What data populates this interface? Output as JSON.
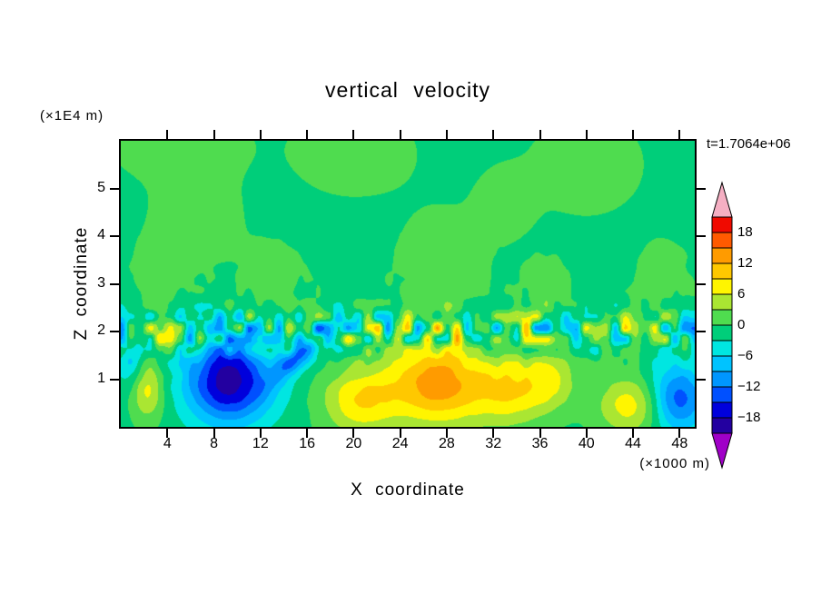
{
  "header": {
    "title": "vertical velocity",
    "timestamp": "t=1.7064e+06"
  },
  "axes": {
    "x_label": "X coordinate",
    "x_unit": "(×1000 m)",
    "x_ticks": [
      4,
      8,
      12,
      16,
      20,
      24,
      28,
      32,
      36,
      40,
      44,
      48
    ],
    "xlim": [
      0,
      49.3
    ],
    "z_label": "Z coordinate",
    "z_unit": "(×1E4 m)",
    "z_ticks": [
      1,
      2,
      3,
      4,
      5
    ],
    "zlim": [
      0,
      6
    ]
  },
  "colorbar": {
    "labels": [
      "18",
      "12",
      "6",
      "0",
      "−6",
      "−12",
      "−18"
    ]
  },
  "chart_data": {
    "type": "heatmap",
    "subtype": "filled-contour",
    "title": "vertical velocity",
    "xlabel": "X coordinate (×1000 m)",
    "ylabel": "Z coordinate (×1E4 m)",
    "time_label": "t=1.7064e+06",
    "xlim": [
      0,
      49.3
    ],
    "ylim": [
      0,
      6
    ],
    "grid": false,
    "legend_position": "right-colorbar",
    "levels": [
      -21,
      -18,
      -15,
      -12,
      -9,
      -6,
      -3,
      0,
      3,
      6,
      9,
      12,
      15,
      18,
      21
    ],
    "colors": [
      "#A000C8",
      "#2300A0",
      "#0000DC",
      "#0050FF",
      "#0096FF",
      "#00C3FF",
      "#00E6E1",
      "#00CE7A",
      "#4FDC4F",
      "#AAE632",
      "#FFF500",
      "#FFC800",
      "#FF9B00",
      "#FF5A00",
      "#F00A00",
      "#F5AFC3"
    ],
    "colorbar_tick_values": [
      18,
      12,
      6,
      0,
      -6,
      -12,
      -18
    ],
    "field_model": {
      "background": -0.8,
      "blobs": [
        {
          "x": 9.3,
          "z": 0.95,
          "sx": 2.6,
          "sz": 0.62,
          "amp": -19
        },
        {
          "x": 15.3,
          "z": 1.5,
          "sx": 1.6,
          "sz": 0.22,
          "amp": -11,
          "rot": 0.19
        },
        {
          "x": 47.9,
          "z": 0.6,
          "sx": 1.7,
          "sz": 0.5,
          "amp": -13
        },
        {
          "x": 0.9,
          "z": 1.55,
          "sx": 0.8,
          "sz": 0.5,
          "amp": -6.5
        },
        {
          "x": 27.3,
          "z": 0.9,
          "sx": 3.2,
          "sz": 0.62,
          "amp": 14.5
        },
        {
          "x": 20.5,
          "z": 0.55,
          "sx": 2.2,
          "sz": 0.5,
          "amp": 9
        },
        {
          "x": 33.5,
          "z": 0.75,
          "sx": 2.0,
          "sz": 0.5,
          "amp": 8
        },
        {
          "x": 36.8,
          "z": 0.95,
          "sx": 1.6,
          "sz": 0.45,
          "amp": 6.5
        },
        {
          "x": 43.8,
          "z": 0.45,
          "sx": 2.0,
          "sz": 0.42,
          "amp": 8.5
        },
        {
          "x": 2.3,
          "z": 0.8,
          "sx": 1.0,
          "sz": 0.45,
          "amp": 8
        },
        {
          "x": 6.5,
          "z": 4.35,
          "sx": 2.6,
          "sz": 0.75,
          "amp": 2.6
        },
        {
          "x": 13,
          "z": 3.15,
          "sx": 1.8,
          "sz": 0.5,
          "amp": 2.6
        },
        {
          "x": 20,
          "z": 5.75,
          "sx": 3.5,
          "sz": 0.6,
          "amp": 2.6
        },
        {
          "x": 27.5,
          "z": 3.4,
          "sx": 2.6,
          "sz": 0.8,
          "amp": 2.6
        },
        {
          "x": 33,
          "z": 4.7,
          "sx": 1.7,
          "sz": 0.5,
          "amp": 2.6
        },
        {
          "x": 40,
          "z": 5.5,
          "sx": 3.2,
          "sz": 0.7,
          "amp": 2.6
        },
        {
          "x": 46.5,
          "z": 3.2,
          "sx": 1.5,
          "sz": 0.5,
          "amp": 2.6
        },
        {
          "x": 3.5,
          "z": 3.25,
          "sx": 1.6,
          "sz": 0.5,
          "amp": 2.6
        },
        {
          "x": 5,
          "z": 5.9,
          "sx": 4.0,
          "sz": 0.5,
          "amp": 2.4
        },
        {
          "x": 36.5,
          "z": 2.9,
          "sx": 1.5,
          "sz": 0.45,
          "amp": 2.4
        }
      ],
      "noise_band": {
        "center_z": 2.02,
        "sigma_z": 0.38,
        "amp": 10.5,
        "broad_amp": 1.6,
        "broad_sigma": 1.1,
        "cell_x": 0.85,
        "cell_z": 0.26
      }
    }
  }
}
